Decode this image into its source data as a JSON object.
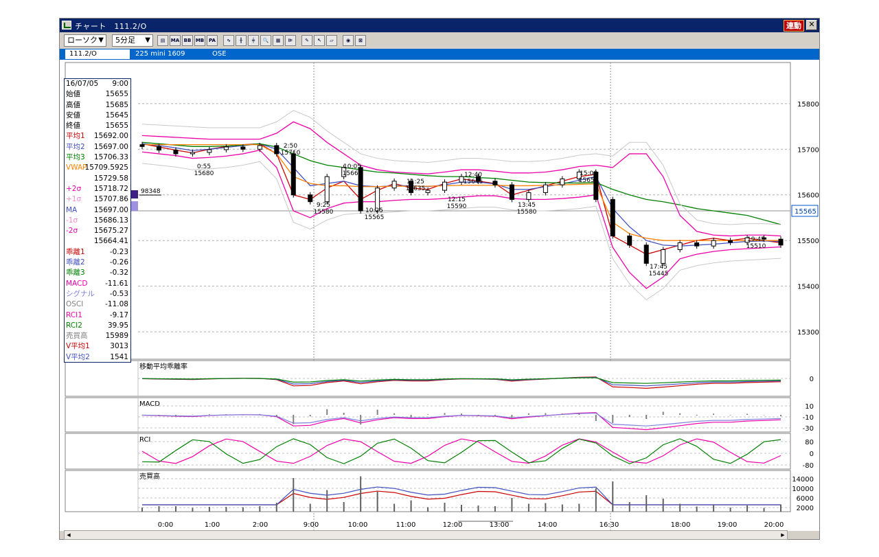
{
  "window": {
    "title": "チャート　111.2/O",
    "sync_label": "連動",
    "close_glyph": "✕"
  },
  "toolbar": {
    "chart_type": "ローソク",
    "interval": "5分足",
    "arrow": "▼",
    "buttons": [
      {
        "name": "period-icon",
        "glyph": "▤"
      },
      {
        "name": "ma-icon",
        "glyph": "MA"
      },
      {
        "name": "bb-icon",
        "glyph": "BB"
      },
      {
        "name": "mb-icon",
        "glyph": "MB"
      },
      {
        "name": "pa-icon",
        "glyph": "PA"
      },
      {
        "name": "line-chart-icon",
        "glyph": "∿"
      },
      {
        "name": "candle-chart-icon",
        "glyph": "╫"
      },
      {
        "name": "indicator-chart-icon",
        "glyph": "╪"
      },
      {
        "name": "zoom-icon",
        "glyph": "🔍"
      },
      {
        "name": "compare-icon",
        "glyph": "▦"
      },
      {
        "name": "settings-icon",
        "glyph": "⊫"
      },
      {
        "name": "pen-icon",
        "glyph": "✎"
      },
      {
        "name": "cursor-icon",
        "glyph": "↖"
      },
      {
        "name": "eraser-icon",
        "glyph": "▱"
      },
      {
        "name": "search-icon",
        "glyph": "◉"
      },
      {
        "name": "cross-icon",
        "glyph": "⊠"
      }
    ]
  },
  "infobar": {
    "code": "111.2/O",
    "name": "225 mini 1609",
    "market": "OSE"
  },
  "panel": {
    "date": "16/07/05",
    "time": "9:00",
    "rows": [
      {
        "label": "始値",
        "value": "15655",
        "color": "#000000"
      },
      {
        "label": "高値",
        "value": "15685",
        "color": "#000000"
      },
      {
        "label": "安値",
        "value": "15645",
        "color": "#000000"
      },
      {
        "label": "終値",
        "value": "15655",
        "color": "#000000"
      },
      {
        "label": "平均1",
        "value": "15692.00",
        "color": "#cc0000"
      },
      {
        "label": "平均2",
        "value": "15697.00",
        "color": "#4050c0"
      },
      {
        "label": "平均3",
        "value": "15706.33",
        "color": "#008000"
      },
      {
        "label": "VWAP",
        "value": "15709.5925",
        "color": "#ff8000"
      },
      {
        "label": "",
        "value": "15729.58",
        "color": "#000000"
      },
      {
        "label": "+2σ",
        "value": "15718.72",
        "color": "#ee00aa"
      },
      {
        "label": "+1σ",
        "value": "15707.86",
        "color": "#ee88cc"
      },
      {
        "label": "MA",
        "value": "15697.00",
        "color": "#4050c0"
      },
      {
        "label": "-1σ",
        "value": "15686.13",
        "color": "#ee88cc"
      },
      {
        "label": "-2σ",
        "value": "15675.27",
        "color": "#ee00aa"
      },
      {
        "label": "",
        "value": "15664.41",
        "color": "#000000"
      },
      {
        "label": "乖離1",
        "value": "-0.23",
        "color": "#cc0000"
      },
      {
        "label": "乖離2",
        "value": "-0.26",
        "color": "#4050c0"
      },
      {
        "label": "乖離3",
        "value": "-0.32",
        "color": "#008000"
      },
      {
        "label": "MACD",
        "value": "-11.61",
        "color": "#ee00aa"
      },
      {
        "label": "シグナル",
        "value": "-0.53",
        "color": "#8080e0"
      },
      {
        "label": "OSCI",
        "value": "-11.08",
        "color": "#808080"
      },
      {
        "label": "RCI1",
        "value": "-9.17",
        "color": "#ee00aa"
      },
      {
        "label": "RCI2",
        "value": "39.95",
        "color": "#008000"
      },
      {
        "label": "売買高",
        "value": "15989",
        "color": "#808080"
      },
      {
        "label": "V平均1",
        "value": "3013",
        "color": "#cc0000"
      },
      {
        "label": "V平均2",
        "value": "1541",
        "color": "#4050c0"
      }
    ]
  },
  "chart_data": {
    "type": "line",
    "title": "225 mini 1609",
    "price_axis": {
      "ticks": [
        15800,
        15700,
        15600,
        15500,
        15400,
        15300
      ],
      "ylim": [
        15240,
        15890
      ]
    },
    "current_price": "15565",
    "volume_marker": "98348",
    "time_labels": [
      "0:00",
      "1:00",
      "2:00",
      "9:00",
      "10:00",
      "11:00",
      "12:00",
      "13:00",
      "14:00",
      "16:30",
      "18:00",
      "19:00",
      "20:00"
    ],
    "annotations": [
      {
        "time": "0:55",
        "price": "15680"
      },
      {
        "time": "2:50",
        "price": "15710"
      },
      {
        "time": "9:25",
        "price": "15580"
      },
      {
        "time": "10:05",
        "price": "15665"
      },
      {
        "time": "10:25",
        "price": "15565"
      },
      {
        "time": "11:25",
        "price": "15635"
      },
      {
        "time": "12:15",
        "price": "15590"
      },
      {
        "time": "12:40",
        "price": "15645"
      },
      {
        "time": "13:45",
        "price": "15580"
      },
      {
        "time": "15:00",
        "price": "15650"
      },
      {
        "time": "17:45",
        "price": "15445"
      },
      {
        "time": "19:45",
        "price": "15510"
      }
    ],
    "series": [
      {
        "name": "平均1",
        "color": "#cc0000",
        "values": [
          15712,
          15705,
          15698,
          15692,
          15700,
          15706,
          15710,
          15712,
          15690,
          15600,
          15590,
          15615,
          15630,
          15590,
          15610,
          15625,
          15615,
          15612,
          15625,
          15635,
          15630,
          15625,
          15600,
          15610,
          15620,
          15630,
          15640,
          15645,
          15510,
          15490,
          15470,
          15480,
          15490,
          15500,
          15505,
          15500,
          15505,
          15500,
          15495
        ]
      },
      {
        "name": "平均2",
        "color": "#4050c0",
        "values": [
          15712,
          15708,
          15703,
          15697,
          15700,
          15704,
          15708,
          15712,
          15700,
          15660,
          15620,
          15625,
          15630,
          15620,
          15618,
          15620,
          15620,
          15618,
          15622,
          15628,
          15628,
          15624,
          15612,
          15612,
          15618,
          15624,
          15632,
          15640,
          15570,
          15530,
          15500,
          15490,
          15488,
          15490,
          15492,
          15495,
          15498,
          15499,
          15498
        ]
      },
      {
        "name": "平均3",
        "color": "#008000",
        "values": [
          15715,
          15712,
          15709,
          15706,
          15706,
          15707,
          15709,
          15712,
          15705,
          15690,
          15675,
          15665,
          15660,
          15655,
          15650,
          15648,
          15645,
          15642,
          15640,
          15640,
          15638,
          15636,
          15632,
          15628,
          15627,
          15626,
          15626,
          15627,
          15612,
          15600,
          15590,
          15585,
          15578,
          15570,
          15565,
          15560,
          15555,
          15545,
          15535
        ]
      },
      {
        "name": "VWAP",
        "color": "#ff8000",
        "values": [
          15710,
          15710,
          15710,
          15710,
          15710,
          15710,
          15710,
          15710,
          15690,
          15640,
          15625,
          15620,
          15620,
          15618,
          15618,
          15619,
          15619,
          15619,
          15620,
          15621,
          15621,
          15621,
          15620,
          15620,
          15621,
          15622,
          15623,
          15624,
          15540,
          15515,
          15505,
          15500,
          15500,
          15500,
          15500,
          15500,
          15500,
          15500,
          15500
        ]
      },
      {
        "name": "+2σ",
        "color": "#ee00aa",
        "values": [
          15730,
          15728,
          15726,
          15724,
          15722,
          15722,
          15722,
          15722,
          15735,
          15760,
          15745,
          15715,
          15690,
          15665,
          15655,
          15650,
          15648,
          15646,
          15650,
          15655,
          15655,
          15652,
          15648,
          15648,
          15650,
          15655,
          15662,
          15665,
          15660,
          15690,
          15690,
          15640,
          15555,
          15520,
          15512,
          15510,
          15512,
          15512,
          15510
        ]
      },
      {
        "name": "-2σ",
        "color": "#ee00aa",
        "values": [
          15694,
          15690,
          15686,
          15680,
          15682,
          15685,
          15690,
          15698,
          15660,
          15565,
          15550,
          15570,
          15582,
          15585,
          15585,
          15588,
          15590,
          15590,
          15592,
          15595,
          15598,
          15598,
          15592,
          15590,
          15590,
          15592,
          15595,
          15600,
          15485,
          15430,
          15395,
          15420,
          15460,
          15470,
          15476,
          15480,
          15482,
          15484,
          15486
        ]
      }
    ],
    "candles": [
      {
        "o": 15710,
        "c": 15706
      },
      {
        "o": 15706,
        "c": 15698
      },
      {
        "o": 15698,
        "c": 15690
      },
      {
        "o": 15690,
        "c": 15693
      },
      {
        "o": 15693,
        "c": 15699
      },
      {
        "o": 15699,
        "c": 15705
      },
      {
        "o": 15705,
        "c": 15700
      },
      {
        "o": 15700,
        "c": 15708
      },
      {
        "o": 15708,
        "c": 15690
      },
      {
        "o": 15690,
        "c": 15600
      },
      {
        "o": 15600,
        "c": 15585
      },
      {
        "o": 15585,
        "c": 15640
      },
      {
        "o": 15640,
        "c": 15660
      },
      {
        "o": 15660,
        "c": 15565
      },
      {
        "o": 15565,
        "c": 15615
      },
      {
        "o": 15615,
        "c": 15630
      },
      {
        "o": 15630,
        "c": 15605
      },
      {
        "o": 15605,
        "c": 15610
      },
      {
        "o": 15610,
        "c": 15628
      },
      {
        "o": 15628,
        "c": 15640
      },
      {
        "o": 15640,
        "c": 15630
      },
      {
        "o": 15630,
        "c": 15622
      },
      {
        "o": 15622,
        "c": 15590
      },
      {
        "o": 15590,
        "c": 15605
      },
      {
        "o": 15605,
        "c": 15622
      },
      {
        "o": 15622,
        "c": 15635
      },
      {
        "o": 15635,
        "c": 15650
      },
      {
        "o": 15650,
        "c": 15590
      },
      {
        "o": 15590,
        "c": 15510
      },
      {
        "o": 15510,
        "c": 15490
      },
      {
        "o": 15490,
        "c": 15450
      },
      {
        "o": 15450,
        "c": 15480
      },
      {
        "o": 15480,
        "c": 15495
      },
      {
        "o": 15495,
        "c": 15488
      },
      {
        "o": 15488,
        "c": 15500
      },
      {
        "o": 15500,
        "c": 15496
      },
      {
        "o": 15496,
        "c": 15506
      },
      {
        "o": 15506,
        "c": 15503
      },
      {
        "o": 15503,
        "c": 15490
      }
    ],
    "subcharts": {
      "deviation": {
        "title": "移動平均乖離率",
        "ticks": [
          "0"
        ]
      },
      "macd": {
        "title": "MACD",
        "ticks": [
          "10",
          "-10",
          "-30"
        ]
      },
      "rci": {
        "title": "RCI",
        "ticks": [
          "80",
          "0",
          "-80"
        ]
      },
      "volume": {
        "title": "売買高",
        "ticks": [
          "14000",
          "10000",
          "6000",
          "2000"
        ]
      }
    }
  }
}
